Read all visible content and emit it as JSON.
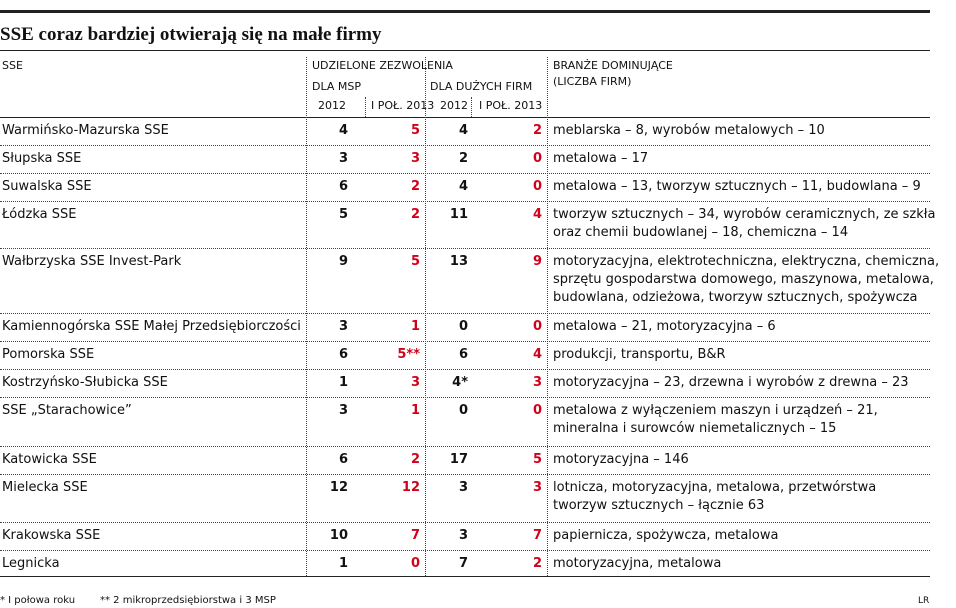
{
  "header": {
    "title": "SSE coraz bardziej otwierają się na małe firmy"
  },
  "table": {
    "columns": {
      "sse": "SSE",
      "permits": "UDZIELONE ZEZWOLENIA",
      "msp": "DLA MSP",
      "large": "DLA DUŻYCH FIRM",
      "year1": "2012",
      "year2": "I POŁ. 2013",
      "year3": "2012",
      "year4": "I POŁ. 2013",
      "industries": [
        "BRANŻE DOMINUJĄCE",
        "(LICZBA FIRM)"
      ]
    },
    "rows": [
      {
        "name": "Warmińsko-Mazurska SSE",
        "msp2012": 4,
        "msp2013": 5,
        "large2012": 4,
        "large2013": 2,
        "industries": [
          "meblarska – 8, wyrobów metalowych – 10"
        ]
      },
      {
        "name": "Słupska SSE",
        "msp2012": 3,
        "msp2013": 3,
        "large2012": 2,
        "large2013": 0,
        "industries": [
          "metalowa – 17"
        ]
      },
      {
        "name": "Suwalska SSE",
        "msp2012": 6,
        "msp2013": 2,
        "large2012": 4,
        "large2013": 0,
        "industries": [
          "metalowa – 13, tworzyw sztucznych – 11, budowlana – 9"
        ]
      },
      {
        "name": "Łódzka SSE",
        "msp2012": 5,
        "msp2013": 2,
        "large2012": 11,
        "large2013": 4,
        "industries": [
          "tworzyw sztucznych – 34, wyrobów ceramicznych, ze szkła",
          "oraz chemii budowlanej – 18, chemiczna – 14"
        ]
      },
      {
        "name": "Wałbrzyska SSE Invest-Park",
        "msp2012": 9,
        "msp2013": 5,
        "large2012": 13,
        "large2013": 9,
        "industries": [
          "motoryzacyjna, elektrotechniczna, elektryczna, chemiczna,",
          "sprzętu gospodarstwa domowego, maszynowa, metalowa,",
          "budowlana, odzieżowa, tworzyw sztucznych, spożywcza"
        ]
      },
      {
        "name": "Kamiennogórska SSE Małej Przedsiębiorczości",
        "msp2012": 3,
        "msp2013": 1,
        "large2012": 0,
        "large2013": 0,
        "industries": [
          "metalowa – 21, motoryzacyjna – 6"
        ]
      },
      {
        "name": "Pomorska SSE",
        "msp2012": 6,
        "msp2013": "5**",
        "large2012": 6,
        "large2013": 4,
        "industries": [
          "produkcji, transportu, B&R"
        ]
      },
      {
        "name": "Kostrzyńsko-Słubicka SSE",
        "msp2012": 1,
        "msp2013": 3,
        "large2012": "4*",
        "large2013": 3,
        "industries": [
          "motoryzacyjna – 23, drzewna i wyrobów z drewna – 23"
        ]
      },
      {
        "name": "SSE „Starachowice”",
        "msp2012": 3,
        "msp2013": 1,
        "large2012": 0,
        "large2013": 0,
        "industries": [
          "metalowa z wyłączeniem maszyn i urządzeń – 21,",
          "mineralna i surowców niemetalicznych – 15"
        ]
      },
      {
        "name": "Katowicka SSE",
        "msp2012": 6,
        "msp2013": 2,
        "large2012": 17,
        "large2013": 5,
        "industries": [
          "motoryzacyjna – 146"
        ]
      },
      {
        "name": "Mielecka SSE",
        "msp2012": 12,
        "msp2013": 12,
        "large2012": 3,
        "large2013": 3,
        "industries": [
          "lotnicza, motoryzacyjna, metalowa, przetwórstwa",
          "tworzyw sztucznych – łącznie 63"
        ]
      },
      {
        "name": "Krakowska SSE",
        "msp2012": 10,
        "msp2013": 7,
        "large2012": 3,
        "large2013": 7,
        "industries": [
          "papiernicza, spożywcza, metalowa"
        ]
      },
      {
        "name": "Legnicka",
        "msp2012": 1,
        "msp2013": 0,
        "large2012": 7,
        "large2013": 2,
        "industries": [
          "motoryzacyjna, metalowa"
        ]
      }
    ]
  },
  "footer": {
    "note1": "* I połowa roku",
    "note2": "** 2 mikroprzedsiębiorstwa i 3 MSP",
    "credit": "LR"
  }
}
